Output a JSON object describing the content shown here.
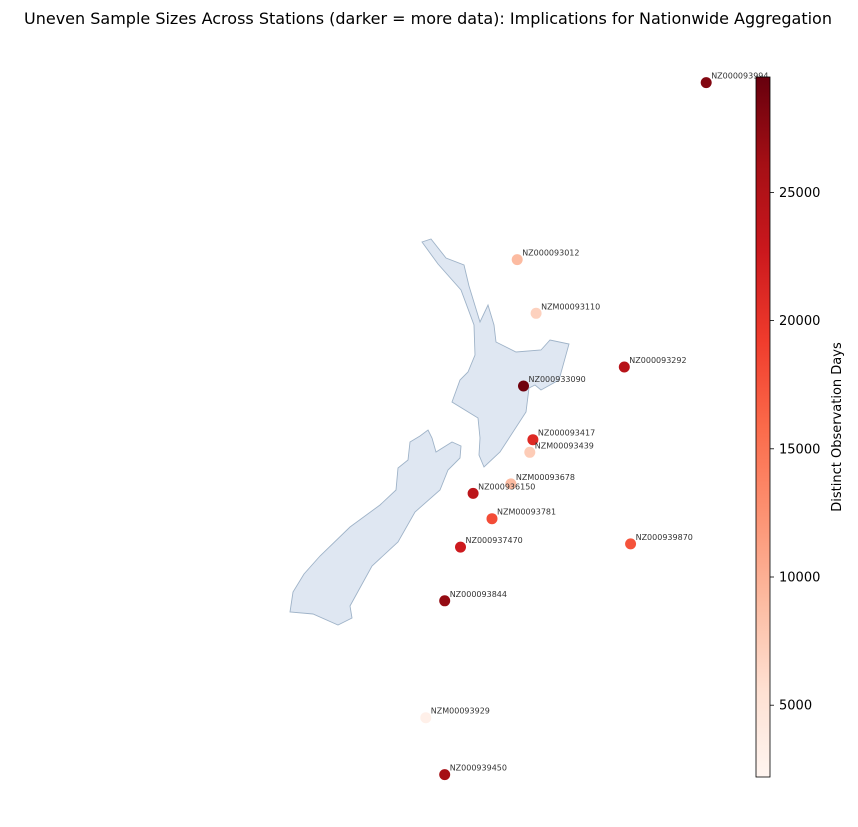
{
  "chart_data": {
    "type": "scatter",
    "title": "Uneven Sample Sizes Across Stations (darker = more data): Implications for Nationwide Aggregation",
    "colorbar": {
      "label": "Distinct Observation Days",
      "range": [
        2200,
        29500
      ],
      "ticks": [
        5000,
        10000,
        15000,
        20000,
        25000
      ],
      "colormap": "Reds"
    },
    "xlim": [
      165.5,
      179.4
    ],
    "ylim": [
      -52.7,
      -28.9
    ],
    "land_color": "#dfe7f2",
    "land_edge": "#9fb3c8",
    "points": [
      {
        "station": "NZ000093994",
        "lon": 178.9,
        "lat": -29.3,
        "days": 28000
      },
      {
        "station": "NZ000093012",
        "lon": 172.9,
        "lat": -34.9,
        "days": 9000
      },
      {
        "station": "NZM00093110",
        "lon": 173.5,
        "lat": -36.6,
        "days": 7000
      },
      {
        "station": "NZ000093292",
        "lon": 176.3,
        "lat": -38.3,
        "days": 24500
      },
      {
        "station": "NZ000933090",
        "lon": 173.1,
        "lat": -38.9,
        "days": 29000
      },
      {
        "station": "NZ000093417",
        "lon": 173.4,
        "lat": -40.6,
        "days": 21000
      },
      {
        "station": "NZM00093439",
        "lon": 173.3,
        "lat": -41.0,
        "days": 7500
      },
      {
        "station": "NZM00093678",
        "lon": 172.7,
        "lat": -42.0,
        "days": 9000
      },
      {
        "station": "NZ000936150",
        "lon": 171.5,
        "lat": -42.3,
        "days": 24000
      },
      {
        "station": "NZM00093781",
        "lon": 172.1,
        "lat": -43.1,
        "days": 18000
      },
      {
        "station": "NZ000937470",
        "lon": 171.1,
        "lat": -44.0,
        "days": 22500
      },
      {
        "station": "NZ000939870",
        "lon": 176.5,
        "lat": -43.9,
        "days": 17500
      },
      {
        "station": "NZ000093844",
        "lon": 170.6,
        "lat": -45.7,
        "days": 27000
      },
      {
        "station": "NZM00093929",
        "lon": 170.0,
        "lat": -49.4,
        "days": 3000
      },
      {
        "station": "NZ000939450",
        "lon": 170.6,
        "lat": -51.2,
        "days": 26000
      }
    ]
  }
}
